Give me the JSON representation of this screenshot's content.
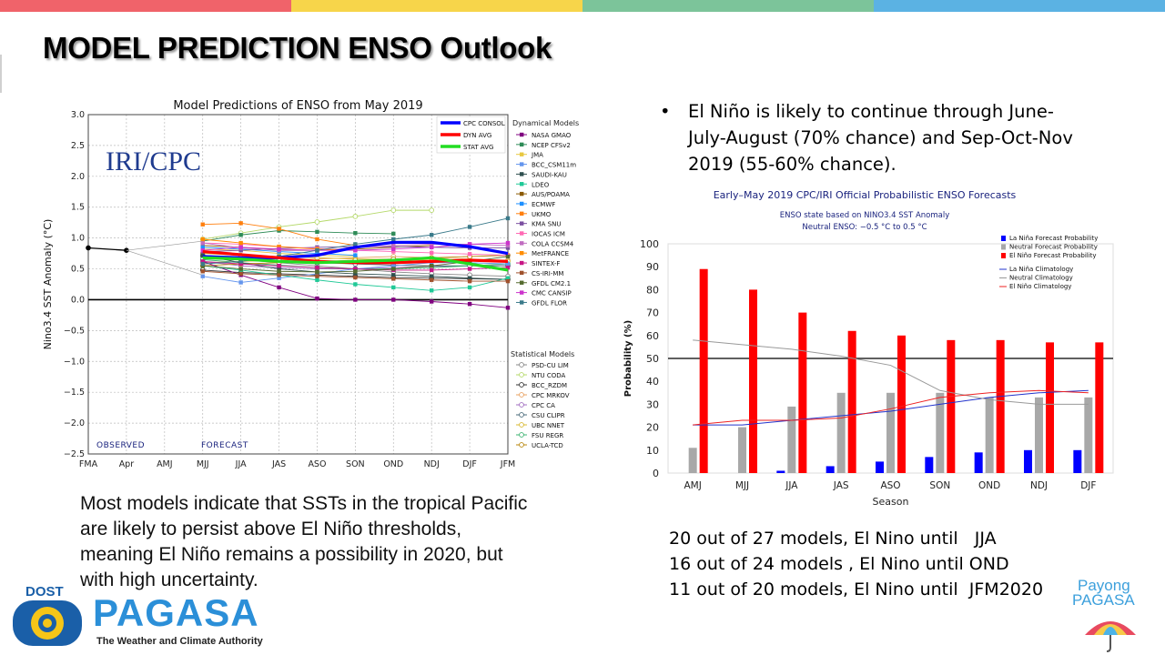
{
  "page": {
    "title": "MODEL PREDICTION ENSO Outlook",
    "topbar_colors": [
      "#f0636a",
      "#f7d54a",
      "#7cc49a",
      "#5bb2e3"
    ]
  },
  "bullet": {
    "symbol": "•",
    "text": "El Niño is likely to continue through June-July-August (70% chance) and Sep-Oct-Nov 2019 (55-60% chance)."
  },
  "bottom_left_text": "Most models indicate that SSTs in the tropical Pacific are likely to persist above El Niño thresholds, meaning El Niño remains a possibility in 2020, but with high uncertainty.",
  "model_counts": [
    "20 out of 27 models, El Nino until   JJA",
    "16 out of 24 models , El Nino until OND",
    "11 out of 20 models, El Nino until  JFM2020"
  ],
  "logos": {
    "dost": "DOST",
    "pagasa": "PAGASA",
    "pagasa_tagline": "The Weather and Climate Authority",
    "payong_line1": "Payong",
    "payong_line2": "PAGASA"
  },
  "chart_data": [
    {
      "type": "line",
      "title": "Model Predictions of ENSO from May 2019",
      "ylabel": "Nino3.4 SST Anomaly (°C)",
      "xlabel": "",
      "watermark": "IRI/CPC",
      "x": [
        "FMA",
        "Apr",
        "AMJ",
        "MJJ",
        "JJA",
        "JAS",
        "ASO",
        "SON",
        "OND",
        "NDJ",
        "DJF",
        "JFM"
      ],
      "ylim": [
        -2.5,
        3.0
      ],
      "yticks": [
        "3.0",
        "2.5",
        "2.0",
        "1.5",
        "1.0",
        "0.5",
        "0.0",
        "−0.5",
        "−1.0",
        "−1.5",
        "−2.0",
        "−2.5"
      ],
      "grid": true,
      "labels": {
        "observed": "OBSERVED",
        "forecast": "FORECAST"
      },
      "legend_heading_dynamical": "Dynamical Models",
      "legend_heading_statistical": "Statistical Models",
      "legend_placement": "right",
      "observed": {
        "x": [
          "FMA",
          "Apr"
        ],
        "values": [
          0.84,
          0.8
        ]
      },
      "averages": [
        {
          "name": "CPC CONSOL",
          "color": "#0000ff",
          "values": [
            0.7,
            0.68,
            0.68,
            0.72,
            0.85,
            0.93,
            0.93,
            0.86,
            0.75
          ]
        },
        {
          "name": "DYN AVG",
          "color": "#ff0000",
          "values": [
            0.78,
            0.73,
            0.68,
            0.62,
            0.6,
            0.6,
            0.62,
            0.64,
            0.62
          ]
        },
        {
          "name": "STAT AVG",
          "color": "#22dd22",
          "values": [
            0.68,
            0.66,
            0.62,
            0.6,
            0.62,
            0.64,
            0.68,
            0.58,
            0.48
          ]
        }
      ],
      "dynamical_models": [
        {
          "name": "NASA GMAO",
          "color": "#800080",
          "values": [
            0.62,
            0.4,
            0.2,
            0.02,
            0.0,
            0.0,
            -0.03,
            -0.07,
            -0.13
          ]
        },
        {
          "name": "NCEP CFSv2",
          "color": "#2e8b57",
          "values": [
            0.95,
            1.05,
            1.12,
            1.1,
            1.08,
            1.07,
            null,
            null,
            null
          ]
        },
        {
          "name": "JMA",
          "color": "#e8c840",
          "values": [
            0.82,
            0.8,
            0.75,
            0.72,
            0.7,
            null,
            null,
            null,
            null
          ]
        },
        {
          "name": "BCC_CSM11m",
          "color": "#6495ed",
          "values": [
            0.38,
            0.28,
            0.35,
            0.42,
            0.5,
            0.55,
            0.6,
            0.6,
            0.58
          ]
        },
        {
          "name": "SAUDI-KAU",
          "color": "#2f4f4f",
          "values": [
            0.72,
            0.6,
            0.5,
            0.45,
            0.42,
            0.4,
            0.38,
            0.35,
            0.33
          ]
        },
        {
          "name": "LDEO",
          "color": "#20c997",
          "values": [
            0.55,
            0.48,
            0.4,
            0.32,
            0.25,
            0.2,
            0.15,
            0.2,
            0.35
          ]
        },
        {
          "name": "AUS/POAMA",
          "color": "#8b5a00",
          "values": [
            0.88,
            0.85,
            0.8,
            0.8,
            0.82,
            0.85,
            0.88,
            null,
            null
          ]
        },
        {
          "name": "ECMWF",
          "color": "#1e90ff",
          "values": [
            0.85,
            0.82,
            0.78,
            0.75,
            0.72,
            null,
            null,
            null,
            null
          ]
        },
        {
          "name": "UKMO",
          "color": "#ff7f0e",
          "values": [
            1.22,
            1.24,
            1.15,
            0.98,
            0.88,
            null,
            null,
            null,
            null
          ]
        },
        {
          "name": "KMA SNU",
          "color": "#7b4fa0",
          "values": [
            0.78,
            0.8,
            0.83,
            0.85,
            0.86,
            0.86,
            0.85,
            0.84,
            0.84
          ]
        },
        {
          "name": "IOCAS ICM",
          "color": "#ff69b4",
          "values": [
            0.92,
            0.9,
            0.86,
            0.83,
            0.8,
            0.78,
            0.76,
            0.74,
            0.72
          ]
        },
        {
          "name": "COLA CCSM4",
          "color": "#c06cc0",
          "values": [
            0.92,
            0.84,
            0.8,
            0.8,
            0.84,
            0.88,
            0.9,
            0.9,
            0.88
          ]
        },
        {
          "name": "MetFRANCE",
          "color": "#ff8c00",
          "values": [
            0.98,
            0.92,
            0.86,
            0.82,
            0.8,
            null,
            null,
            null,
            null
          ]
        },
        {
          "name": "SINTEX-F",
          "color": "#c71585",
          "values": [
            0.62,
            0.58,
            0.55,
            0.52,
            0.5,
            0.48,
            0.48,
            0.5,
            0.52
          ]
        },
        {
          "name": "CS-IRI-MM",
          "color": "#a0522d",
          "values": [
            0.46,
            0.42,
            0.4,
            0.38,
            0.36,
            0.34,
            0.32,
            0.3,
            0.3
          ]
        },
        {
          "name": "GFDL CM2.1",
          "color": "#556b2f",
          "values": [
            0.55,
            0.5,
            0.46,
            0.45,
            0.46,
            0.5,
            0.55,
            0.62,
            0.7
          ]
        },
        {
          "name": "CMC CANSIP",
          "color": "#cc33cc",
          "values": [
            0.8,
            0.85,
            0.82,
            0.8,
            0.8,
            0.82,
            0.85,
            0.9,
            0.92
          ]
        },
        {
          "name": "GFDL FLOR",
          "color": "#3a7a8a",
          "values": [
            0.58,
            0.62,
            0.7,
            0.8,
            0.9,
            0.98,
            1.05,
            1.18,
            1.32
          ]
        }
      ],
      "statistical_models": [
        {
          "name": "PSD-CU LIM",
          "color": "#888888",
          "values": [
            0.7,
            0.65,
            0.6,
            0.55,
            0.5,
            0.45,
            0.42,
            0.4,
            0.38
          ]
        },
        {
          "name": "NTU CODA",
          "color": "#b5d96a",
          "values": [
            0.98,
            1.08,
            1.18,
            1.26,
            1.35,
            1.45,
            1.45,
            null,
            null
          ]
        },
        {
          "name": "BCC_RZDM",
          "color": "#333333",
          "values": [
            0.48,
            0.44,
            0.42,
            0.4,
            0.38,
            0.36,
            0.35,
            0.34,
            0.33
          ]
        },
        {
          "name": "CPC MRKOV",
          "color": "#e8a060",
          "values": [
            0.6,
            0.62,
            0.64,
            0.66,
            0.68,
            0.7,
            0.68,
            0.66,
            0.64
          ]
        },
        {
          "name": "CPC CA",
          "color": "#a06cc0",
          "values": [
            0.62,
            0.55,
            0.52,
            0.5,
            0.5,
            0.52,
            0.54,
            0.55,
            0.55
          ]
        },
        {
          "name": "CSU CLIPR",
          "color": "#4a6a7a",
          "values": [
            0.72,
            0.68,
            0.64,
            0.6,
            0.58,
            0.56,
            0.55,
            0.55,
            0.55
          ]
        },
        {
          "name": "UBC NNET",
          "color": "#d8b830",
          "values": [
            0.75,
            0.72,
            0.7,
            0.68,
            0.66,
            0.65,
            0.64,
            0.63,
            0.62
          ]
        },
        {
          "name": "FSU REGR",
          "color": "#3cb371",
          "values": [
            0.65,
            0.6,
            0.56,
            0.52,
            0.5,
            0.5,
            0.52,
            0.55,
            0.58
          ]
        },
        {
          "name": "UCLA-TCD",
          "color": "#b8860b",
          "values": [
            0.55,
            0.58,
            0.6,
            0.62,
            0.64,
            0.66,
            0.68,
            0.7,
            0.72
          ]
        }
      ]
    },
    {
      "type": "bar",
      "title": "Early–May 2019 CPC/IRI Official Probabilistic ENSO Forecasts",
      "subtitle1": "ENSO state based on NINO3.4 SST Anomaly",
      "subtitle2": "Neutral ENSO: −0.5 °C to 0.5 °C",
      "xlabel": "Season",
      "ylabel": "Probability (%)",
      "ylim": [
        0,
        100
      ],
      "yticks": [
        "0",
        "10",
        "20",
        "30",
        "40",
        "50",
        "60",
        "70",
        "80",
        "90",
        "100"
      ],
      "categories": [
        "AMJ",
        "MJJ",
        "JJA",
        "JAS",
        "ASO",
        "SON",
        "OND",
        "NDJ",
        "DJF"
      ],
      "legend_placement": "top-right",
      "series": [
        {
          "name": "La Niña Forecast Probability",
          "color": "#0000ff",
          "values": [
            0,
            0,
            1,
            3,
            5,
            7,
            9,
            10,
            10
          ]
        },
        {
          "name": "Neutral Forecast Probability",
          "color": "#a8a8a8",
          "values": [
            11,
            20,
            29,
            35,
            35,
            35,
            33,
            33,
            33
          ]
        },
        {
          "name": "El Niño Forecast Probability",
          "color": "#ff0000",
          "values": [
            89,
            80,
            70,
            62,
            60,
            58,
            58,
            57,
            57
          ]
        }
      ],
      "climatology": [
        {
          "name": "La Niña Climatology",
          "color": "#2233cc",
          "values": [
            21,
            21,
            23,
            25,
            27,
            30,
            33,
            35,
            36
          ]
        },
        {
          "name": "Neutral Climatology",
          "color": "#999999",
          "values": [
            58,
            56,
            54,
            51,
            47,
            36,
            32,
            30,
            30
          ]
        },
        {
          "name": "El Niño Climatology",
          "color": "#ee2222",
          "values": [
            21,
            23,
            23,
            24,
            28,
            33,
            35,
            36,
            35
          ]
        }
      ],
      "reference_line": 50
    }
  ]
}
